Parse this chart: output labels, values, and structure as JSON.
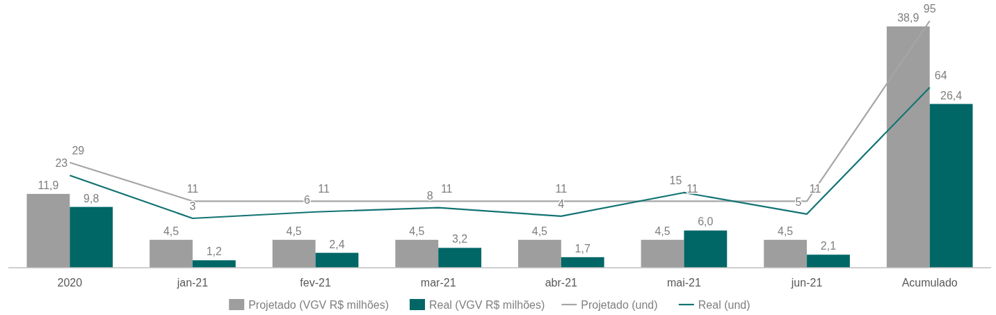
{
  "chart_data": {
    "type": "bar",
    "categories": [
      "2020",
      "jan-21",
      "fev-21",
      "mar-21",
      "abr-21",
      "mai-21",
      "jun-21",
      "Acumulado"
    ],
    "series": [
      {
        "name": "Projetado (VGV R$ milhões)",
        "color": "#9e9e9e",
        "values": [
          11.9,
          4.5,
          4.5,
          4.5,
          4.5,
          4.5,
          4.5,
          38.9
        ],
        "value_labels": [
          "11,9",
          "4,5",
          "4,5",
          "4,5",
          "4,5",
          "4,5",
          "4,5",
          "38,9"
        ]
      },
      {
        "name": "Real (VGV R$ milhões)",
        "color": "#006666",
        "values": [
          9.8,
          1.2,
          2.4,
          3.2,
          1.7,
          6.0,
          2.1,
          26.4
        ],
        "value_labels": [
          "9,8",
          "1,2",
          "2,4",
          "3,2",
          "1,7",
          "6,0",
          "2,1",
          "26,4"
        ]
      },
      {
        "name": "Projetado (und)",
        "type": "line",
        "axis": "y2",
        "color": "#a6a6a6",
        "values": [
          29,
          11,
          11,
          11,
          11,
          11,
          11,
          95
        ],
        "value_labels": [
          "29",
          "11",
          "11",
          "11",
          "11",
          "11",
          "11",
          "95"
        ]
      },
      {
        "name": "Real (und)",
        "type": "line",
        "axis": "y2",
        "color": "#137373",
        "values": [
          23,
          3,
          6,
          8,
          4,
          15,
          5,
          64
        ],
        "value_labels": [
          "23",
          "3",
          "6",
          "8",
          "4",
          "15",
          "5",
          "64"
        ]
      }
    ],
    "tick_labels": "x",
    "legend": "bottom",
    "marker": "none"
  }
}
